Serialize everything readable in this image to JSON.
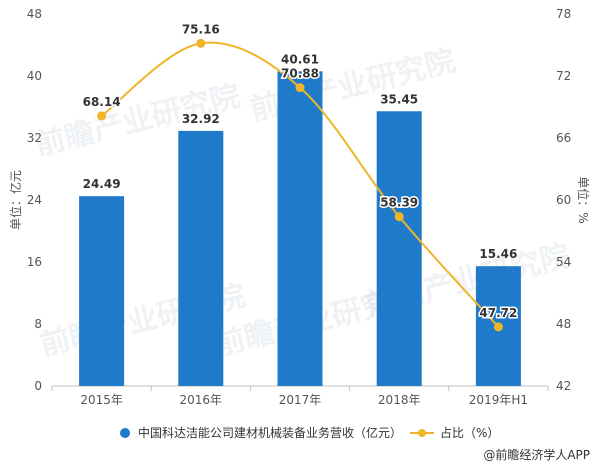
{
  "chart_data": {
    "type": "bar+line",
    "categories": [
      "2015年",
      "2016年",
      "2017年",
      "2018年",
      "2019年H1"
    ],
    "series": [
      {
        "name": "中国科达洁能公司建材机械装备业务营收（亿元）",
        "type": "bar",
        "axis": "left",
        "color": "#1f7ac9",
        "values": [
          24.49,
          32.92,
          40.61,
          35.45,
          15.46
        ]
      },
      {
        "name": "占比（%）",
        "type": "line",
        "axis": "right",
        "color": "#f0b429",
        "values": [
          68.14,
          75.16,
          70.88,
          58.39,
          47.72
        ]
      }
    ],
    "ylabel": "单位：亿元",
    "y2label": "单位：%",
    "ylim": [
      0,
      48
    ],
    "yticks": [
      0,
      8,
      16,
      24,
      32,
      40,
      48
    ],
    "y2lim": [
      42,
      78
    ],
    "y2ticks": [
      42,
      48,
      54,
      60,
      66,
      72,
      78
    ],
    "grid": false,
    "legend": "bottom"
  },
  "watermark": "前瞻产业研究院",
  "source": "@前瞻经济学人APP"
}
